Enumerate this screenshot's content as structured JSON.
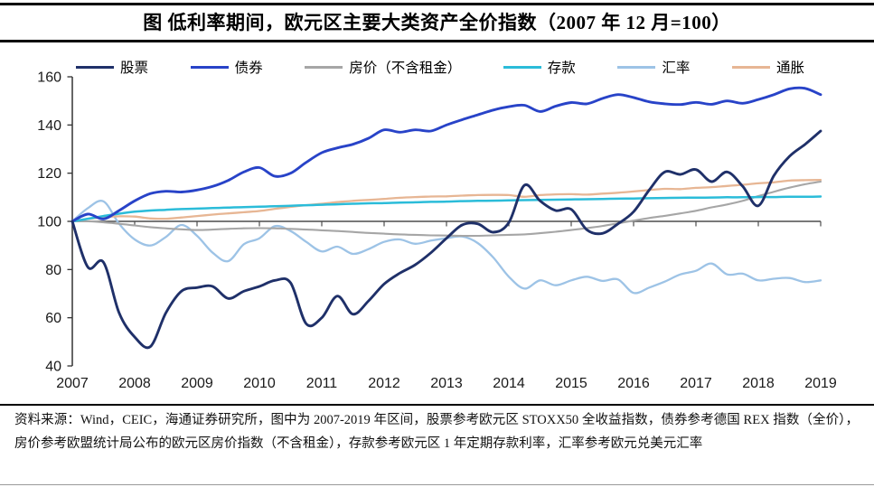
{
  "source_note": "资料来源：Wind，CEIC，海通证券研究所，图中为 2007-2019 年区间，股票参考欧元区 STOXX50 全收益指数，债券参考德国 REX 指数（全价），房价参考欧盟统计局公布的欧元区房价指数（不含租金），存款参考欧元区 1 年定期存款利率，汇率参考欧元兑美元汇率",
  "chart_data": {
    "type": "line",
    "title": "图  低利率期间，欧元区主要大类资产全价指数（2007 年 12 月=100）",
    "base_note": "2007 年 12 月=100",
    "legend_position": "top",
    "grid": "off",
    "x_axis": {
      "tick_labels": [
        "2007",
        "2008",
        "2009",
        "2010",
        "2011",
        "2012",
        "2013",
        "2014",
        "2015",
        "2016",
        "2017",
        "2018",
        "2019"
      ],
      "range_years": [
        0,
        12
      ]
    },
    "y_axis": {
      "ticks": [
        40,
        60,
        80,
        100,
        120,
        140,
        160
      ],
      "range": [
        40,
        160
      ]
    },
    "baseline_value": 100,
    "axis_color": "#333333",
    "baseline_color": "#4d4d4d",
    "text_color": "#1a1a1a",
    "x_start": 0,
    "x_step_years": 0.25,
    "series": [
      {
        "id": "fx",
        "name": "汇率",
        "color": "#9DC3E6",
        "width": 2.3,
        "values": [
          100,
          105.5,
          108.3,
          99,
          92.5,
          90,
          93.5,
          98.5,
          94,
          87,
          83.5,
          90.5,
          93,
          98,
          96,
          91.5,
          87.5,
          89.5,
          86.5,
          88.5,
          91.5,
          92.5,
          90.7,
          92,
          93,
          93.7,
          91,
          85,
          77,
          72.1,
          75.5,
          73.5,
          75.5,
          77,
          75.3,
          75.9,
          70.3,
          72.5,
          75,
          78,
          79.5,
          82.5,
          78,
          78.3,
          75.5,
          76.2,
          76.5,
          74.8,
          75.5
        ]
      },
      {
        "id": "inflation",
        "name": "通胀",
        "color": "#E7B694",
        "width": 2.3,
        "values": [
          100,
          101,
          101.7,
          102.1,
          102,
          101.2,
          101.1,
          101.6,
          102.2,
          102.8,
          103.3,
          103.8,
          104.3,
          105.2,
          106,
          106.7,
          107.3,
          108,
          108.5,
          108.9,
          109.3,
          109.8,
          110.1,
          110.3,
          110.4,
          110.7,
          110.9,
          111,
          110.9,
          110.2,
          110.9,
          111.2,
          111.3,
          111.1,
          111.5,
          111.9,
          112.4,
          113,
          113.5,
          113.4,
          113.9,
          114.2,
          114.7,
          115.2,
          115.8,
          116.2,
          116.9,
          117.1,
          117.2
        ]
      },
      {
        "id": "house-price",
        "name": "房价（不含租金）",
        "color": "#A6A6A6",
        "width": 2.1,
        "values": [
          100,
          100,
          99.6,
          99,
          98.3,
          97.6,
          97.1,
          96.7,
          96.4,
          96.6,
          96.9,
          97.1,
          97.2,
          97.1,
          96.9,
          96.6,
          96.3,
          96,
          95.6,
          95.2,
          94.9,
          94.6,
          94.4,
          94.2,
          94.1,
          94,
          94,
          94.2,
          94.4,
          94.6,
          95.1,
          95.7,
          96.4,
          97.2,
          98.1,
          99.2,
          100.3,
          101.4,
          102.3,
          103.3,
          104.4,
          105.8,
          107,
          108.5,
          110.5,
          112.3,
          114,
          115.4,
          116.5
        ]
      },
      {
        "id": "deposits",
        "name": "存款",
        "color": "#2BBCD9",
        "width": 2.5,
        "values": [
          100,
          101.1,
          102.2,
          103.2,
          104,
          104.5,
          104.8,
          105.1,
          105.3,
          105.5,
          105.7,
          105.9,
          106.1,
          106.3,
          106.5,
          106.7,
          106.9,
          107.1,
          107.3,
          107.5,
          107.6,
          107.8,
          107.9,
          108.1,
          108.2,
          108.4,
          108.5,
          108.6,
          108.7,
          108.8,
          108.9,
          109,
          109.1,
          109.2,
          109.3,
          109.4,
          109.5,
          109.6,
          109.7,
          109.8,
          109.85,
          109.9,
          110,
          110,
          110.1,
          110.1,
          110.2,
          110.2,
          110.3
        ]
      },
      {
        "id": "bonds",
        "name": "债券",
        "color": "#2843C8",
        "width": 2.9,
        "values": [
          100,
          103,
          101,
          104.5,
          108.5,
          111.5,
          112.5,
          112.2,
          113,
          114.5,
          117,
          120.5,
          122.3,
          118.7,
          120,
          124.5,
          128.5,
          130.5,
          132,
          134.5,
          138,
          137,
          138,
          137.5,
          140,
          142.2,
          144.2,
          146.2,
          147.6,
          148.2,
          145.6,
          147.8,
          149.3,
          148.8,
          151,
          152.6,
          151.4,
          149.6,
          148.8,
          148.5,
          149.4,
          148.6,
          150,
          149,
          150.6,
          152.6,
          155,
          155.2,
          152.6
        ]
      },
      {
        "id": "stocks",
        "name": "股票",
        "color": "#1F3069",
        "width": 2.9,
        "values": [
          100,
          81,
          83,
          62,
          52,
          48,
          62,
          71,
          72.5,
          73,
          68,
          71,
          73,
          75.5,
          74.5,
          57.5,
          60,
          69,
          61.5,
          67,
          74,
          78.5,
          82,
          87,
          93,
          98.5,
          99,
          95.5,
          99.5,
          115,
          108.5,
          104.5,
          105,
          96.5,
          95,
          99,
          104,
          113,
          120.5,
          119.5,
          121.5,
          116.5,
          120.5,
          114.5,
          106.5,
          119,
          127,
          132,
          137.5
        ]
      }
    ],
    "legend_order": [
      "stocks",
      "bonds",
      "house-price",
      "deposits",
      "fx",
      "inflation"
    ]
  }
}
